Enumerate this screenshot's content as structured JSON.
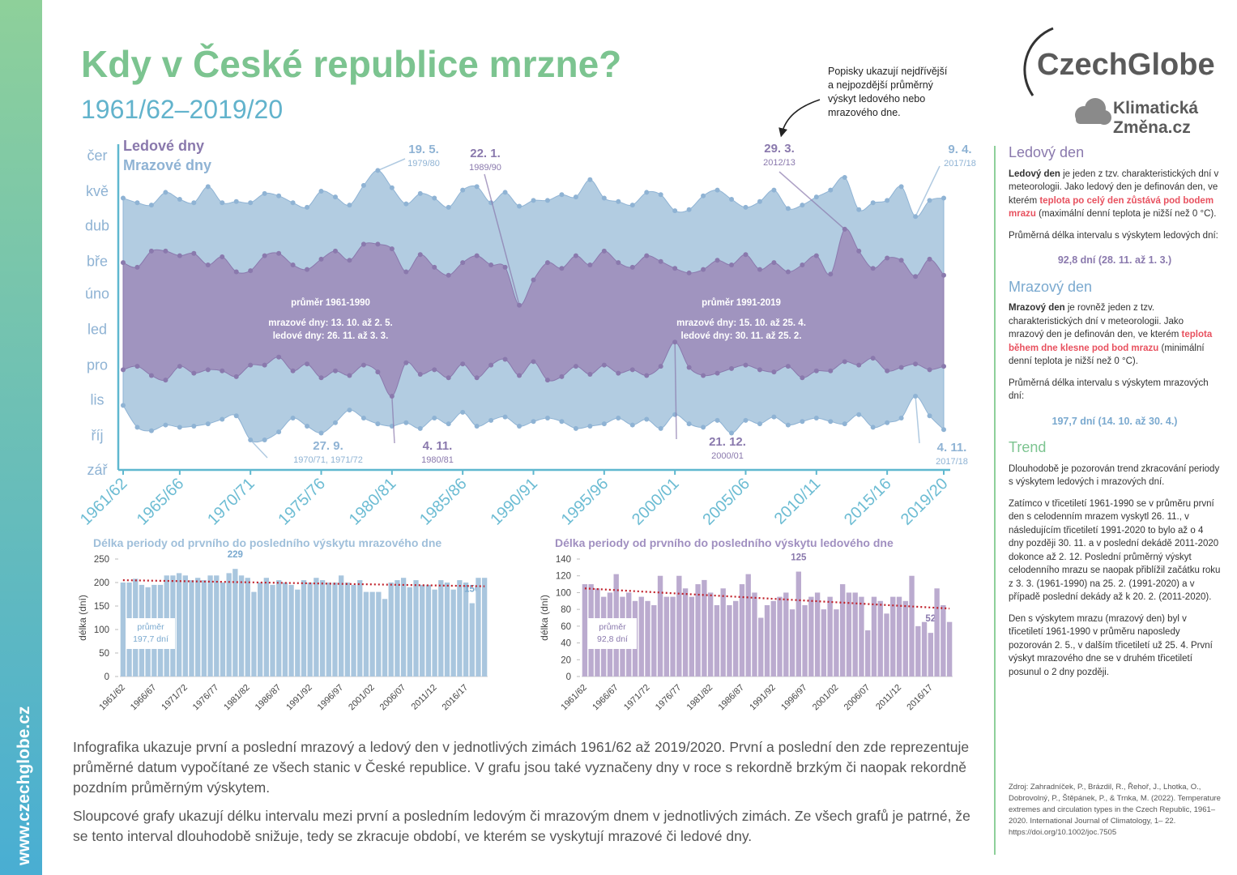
{
  "header": {
    "title": "Kdy v České republice mrzne?",
    "subtitle": "1961/62–2019/20",
    "site": "www.czechglobe.cz"
  },
  "logo": {
    "name": "CzechGlobe",
    "line1": "Klimatická",
    "line2": "Změna.cz"
  },
  "chart_data": [
    {
      "type": "range_area",
      "categories": [
        "1961/62",
        null,
        null,
        null,
        "1965/66",
        null,
        null,
        null,
        null,
        "1970/71",
        null,
        null,
        null,
        null,
        "1975/76",
        null,
        null,
        null,
        null,
        "1980/81",
        null,
        null,
        null,
        null,
        "1985/86",
        null,
        null,
        null,
        null,
        "1990/91",
        null,
        null,
        null,
        null,
        "1995/96",
        null,
        null,
        null,
        null,
        "2000/01",
        null,
        null,
        null,
        null,
        "2005/06",
        null,
        null,
        null,
        null,
        "2010/11",
        null,
        null,
        null,
        null,
        "2015/16",
        null,
        null,
        null,
        "2019/20"
      ],
      "ylim": [
        0,
        280
      ],
      "yticks": [
        {
          "value": 0,
          "label": "zář"
        },
        {
          "value": 30,
          "label": "říj"
        },
        {
          "value": 61,
          "label": "lis"
        },
        {
          "value": 91,
          "label": "pro"
        },
        {
          "value": 122,
          "label": "led"
        },
        {
          "value": 153,
          "label": "úno"
        },
        {
          "value": 181,
          "label": "bře"
        },
        {
          "value": 212,
          "label": "dub"
        },
        {
          "value": 242,
          "label": "kvě"
        },
        {
          "value": 273,
          "label": "čer"
        }
      ],
      "axis_color": "#5fb8cf",
      "series": [
        {
          "name": "Mrazové dny",
          "color": "#aac6de",
          "point_color": "#8fb3d4",
          "start": [
            56,
            37,
            34,
            39,
            37,
            38,
            40,
            44,
            47,
            26,
            26,
            33,
            45,
            38,
            32,
            41,
            52,
            45,
            40,
            38,
            41,
            36,
            45,
            40,
            50,
            38,
            43,
            46,
            38,
            42,
            45,
            42,
            36,
            38,
            40,
            45,
            39,
            44,
            36,
            48,
            40,
            37,
            43,
            32,
            43,
            40,
            46,
            39,
            42,
            45,
            42,
            40,
            48,
            37,
            41,
            45,
            64,
            47,
            35
          ],
          "end": [
            236,
            232,
            230,
            241,
            235,
            232,
            246,
            232,
            233,
            232,
            240,
            238,
            232,
            228,
            242,
            237,
            230,
            247,
            260,
            245,
            231,
            240,
            236,
            228,
            243,
            246,
            232,
            241,
            229,
            234,
            234,
            239,
            237,
            252,
            236,
            233,
            230,
            241,
            239,
            225,
            226,
            238,
            243,
            235,
            228,
            233,
            243,
            227,
            230,
            237,
            243,
            254,
            226,
            232,
            234,
            246,
            220,
            234,
            236
          ]
        },
        {
          "name": "Ledové dny",
          "color": "#9d8ebb",
          "point_color": "#8a79ad",
          "start": [
            87,
            90,
            82,
            78,
            90,
            84,
            87,
            86,
            81,
            91,
            91,
            98,
            86,
            92,
            80,
            86,
            82,
            91,
            85,
            64,
            93,
            83,
            87,
            80,
            92,
            80,
            91,
            96,
            82,
            94,
            78,
            81,
            90,
            83,
            91,
            84,
            87,
            82,
            90,
            111,
            89,
            82,
            84,
            88,
            91,
            87,
            85,
            90,
            80,
            86,
            86,
            94,
            91,
            97,
            86,
            89,
            92,
            87,
            90
          ],
          "end": [
            180,
            176,
            190,
            190,
            186,
            188,
            178,
            185,
            172,
            173,
            186,
            188,
            178,
            174,
            183,
            190,
            182,
            196,
            196,
            192,
            172,
            187,
            176,
            169,
            180,
            186,
            178,
            176,
            143,
            165,
            180,
            175,
            186,
            178,
            190,
            180,
            176,
            186,
            181,
            175,
            171,
            174,
            182,
            178,
            187,
            174,
            180,
            172,
            178,
            186,
            170,
            209,
            190,
            175,
            184,
            182,
            168,
            183,
            169
          ]
        }
      ],
      "annotations": [
        {
          "date": "19. 5.",
          "season": "1979/80"
        },
        {
          "date": "22. 1.",
          "season": "1989/90"
        },
        {
          "date": "29. 3.",
          "season": "2012/13"
        },
        {
          "date": "9. 4.",
          "season": "2017/18"
        },
        {
          "date": "27. 9.",
          "season": "1970/71, 1971/72"
        },
        {
          "date": "4. 11.",
          "season": "1980/81"
        },
        {
          "date": "21. 12.",
          "season": "2000/01"
        },
        {
          "date": "4. 11.",
          "season": "2017/18"
        }
      ],
      "averages": [
        {
          "title": "průměr 1961-1990",
          "frost": "mrazové dny: 13. 10. až 2. 5.",
          "ice": "ledové dny: 26. 11. až 3. 3."
        },
        {
          "title": "průměr 1991-2019",
          "frost": "mrazové dny: 15. 10. až 25. 4.",
          "ice": "ledové dny: 30. 11. až 25. 2."
        }
      ],
      "note": [
        "Popisky ukazují nejdřívější",
        "a nejpozdější průměrný",
        "výskyt ledového nebo",
        "mrazového dne."
      ]
    },
    {
      "type": "bar",
      "title": "Délka periody od prvního do posledního výskytu mrazového dne",
      "y_label": "délka (dní)",
      "title_color": "#9fbfda",
      "color": "#a9c6de",
      "label_color": "#7aa9cf",
      "categories": [
        "1961/62",
        null,
        null,
        null,
        null,
        "1966/67",
        null,
        null,
        null,
        null,
        "1971/72",
        null,
        null,
        null,
        null,
        "1976/77",
        null,
        null,
        null,
        null,
        "1981/82",
        null,
        null,
        null,
        null,
        "1986/87",
        null,
        null,
        null,
        null,
        "1991/92",
        null,
        null,
        null,
        null,
        "1996/97",
        null,
        null,
        null,
        null,
        "2001/02",
        null,
        null,
        null,
        null,
        "2006/07",
        null,
        null,
        null,
        null,
        "2011/12",
        null,
        null,
        null,
        null,
        "2016/17",
        null,
        null,
        null
      ],
      "values": [
        200,
        200,
        208,
        195,
        190,
        195,
        195,
        215,
        215,
        220,
        215,
        205,
        210,
        205,
        215,
        215,
        200,
        220,
        229,
        215,
        210,
        180,
        200,
        210,
        195,
        205,
        200,
        195,
        185,
        205,
        200,
        210,
        205,
        200,
        200,
        215,
        200,
        195,
        205,
        180,
        180,
        180,
        165,
        200,
        205,
        210,
        190,
        205,
        195,
        195,
        185,
        205,
        200,
        185,
        205,
        200,
        156,
        210,
        210
      ],
      "value_labels": [
        null,
        null,
        null,
        null,
        null,
        null,
        null,
        null,
        null,
        null,
        null,
        null,
        null,
        null,
        null,
        null,
        null,
        null,
        "229",
        null,
        null,
        null,
        null,
        null,
        null,
        null,
        null,
        null,
        null,
        null,
        null,
        null,
        null,
        null,
        null,
        null,
        null,
        null,
        null,
        null,
        null,
        null,
        null,
        null,
        null,
        null,
        null,
        null,
        null,
        null,
        null,
        null,
        null,
        null,
        null,
        null,
        "156",
        null,
        null
      ],
      "trend": [
        205,
        192
      ],
      "average_label": [
        "průměr",
        "197,7 dní"
      ],
      "ylim": [
        0,
        250
      ],
      "yticks": [
        0,
        50,
        100,
        150,
        200,
        250
      ]
    },
    {
      "type": "bar",
      "title": "Délka periody od prvního do posledního výskytu ledového dne",
      "y_label": "délka (dní)",
      "title_color": "#a08fc0",
      "color": "#bbabcf",
      "label_color": "#8a79ad",
      "categories": [
        "1961/62",
        null,
        null,
        null,
        null,
        "1966/67",
        null,
        null,
        null,
        null,
        "1971/72",
        null,
        null,
        null,
        null,
        "1976/77",
        null,
        null,
        null,
        null,
        "1981/82",
        null,
        null,
        null,
        null,
        "1986/87",
        null,
        null,
        null,
        null,
        "1991/92",
        null,
        null,
        null,
        null,
        "1996/97",
        null,
        null,
        null,
        null,
        "2001/02",
        null,
        null,
        null,
        null,
        "2006/07",
        null,
        null,
        null,
        null,
        "2011/12",
        null,
        null,
        null,
        null,
        "2016/17",
        null,
        null,
        null
      ],
      "values": [
        110,
        110,
        105,
        95,
        100,
        122,
        95,
        100,
        90,
        95,
        90,
        85,
        120,
        95,
        95,
        120,
        105,
        95,
        110,
        115,
        100,
        85,
        105,
        85,
        90,
        110,
        122,
        100,
        70,
        85,
        90,
        95,
        100,
        80,
        125,
        85,
        95,
        100,
        80,
        95,
        80,
        110,
        100,
        100,
        95,
        55,
        95,
        90,
        75,
        95,
        95,
        90,
        120,
        60,
        65,
        52,
        105,
        85,
        65
      ],
      "value_labels": [
        null,
        null,
        null,
        null,
        null,
        null,
        null,
        null,
        null,
        null,
        null,
        null,
        null,
        null,
        null,
        null,
        null,
        null,
        null,
        null,
        null,
        null,
        null,
        null,
        null,
        null,
        null,
        null,
        null,
        null,
        null,
        null,
        null,
        null,
        "125",
        null,
        null,
        null,
        null,
        null,
        null,
        null,
        null,
        null,
        null,
        null,
        null,
        null,
        null,
        null,
        null,
        null,
        null,
        null,
        null,
        "52",
        null,
        null,
        null
      ],
      "trend": [
        105,
        81
      ],
      "average_label": [
        "průměr",
        "92,8 dní"
      ],
      "ylim": [
        0,
        140
      ],
      "yticks": [
        0,
        20,
        40,
        60,
        80,
        100,
        120,
        140
      ]
    }
  ],
  "sidebar": {
    "ice": {
      "heading": "Ledový den",
      "definition": [
        "Ledový den",
        " je jeden z tzv. charakteristických dní v meteorologii. Jako ledový den je definován den, ve kterém ",
        "teplota po celý den zůstává pod bodem mrazu",
        " (maximální denní teplota je nižší než 0 °C)."
      ],
      "interval": "Průměrná délka intervalu s výskytem ledových dní:",
      "stat": "92,8 dní (28. 11. až 1. 3.)"
    },
    "frost": {
      "heading": "Mrazový den",
      "definition": [
        "Mrazový den",
        " je rovněž jeden z tzv. charakteristických dní v meteorologii. Jako mrazový den je definován den, ve kterém ",
        "teplota během dne klesne pod bod mrazu",
        " (minimální denní teplota je nižší než 0 °C)."
      ],
      "interval": "Průměrná délka intervalu s výskytem mrazových dní:",
      "stat": "197,7 dní (14. 10. až 30. 4.)"
    },
    "trend": {
      "heading": "Trend",
      "paragraphs": [
        "Dlouhodobě je pozorován trend zkracování periody s výskytem ledových i mrazových dní.",
        "Zatímco v třicetiletí 1961-1990 se v průměru první den s celodenním mrazem vyskytl 26. 11., v následujícím třicetiletí 1991-2020 to bylo až o 4 dny později 30. 11. a v poslední dekádě 2011-2020 dokonce až 2. 12. Poslední průměrný výskyt celodenního mrazu se naopak přiblížil začátku roku z 3. 3. (1961-1990) na 25. 2. (1991-2020) a v případě poslední dekády až k 20. 2. (2011-2020).",
        "Den s výskytem mrazu (mrazový den) byl v třicetiletí 1961-1990 v průměru naposledy pozorován 2. 5., v dalším třicetiletí už 25. 4. První výskyt mrazového dne se v druhém třicetiletí posunul o 2 dny později."
      ]
    },
    "source": "Zdroj: Zahradníček, P., Brázdil, R., Řehoř, J., Lhotka, O., Dobrovolný, P., Štěpánek, P., & Trnka, M. (2022). Temperature extremes and circulation types in the Czech Republic, 1961–2020. International Journal of Climatology, 1– 22. https://doi.org/10.1002/joc.7505"
  },
  "description": [
    "Infografika ukazuje první a poslední mrazový a ledový den v jednotlivých zimách 1961/62 až 2019/2020. První a poslední den zde reprezentuje průměrné datum vypočítané ze všech stanic v České republice. V grafu jsou také vyznačeny dny v roce s rekordně brzkým či naopak rekordně pozdním průměrným výskytem.",
    "Sloupcové grafy ukazují délku intervalu mezi první a posledním ledovým či mrazovým dnem v jednotlivých zimách. Ze všech grafů je patrné, že se tento interval dlouhodobě snižuje, tedy se zkracuje období, ve kterém se vyskytují mrazové či ledové dny."
  ]
}
